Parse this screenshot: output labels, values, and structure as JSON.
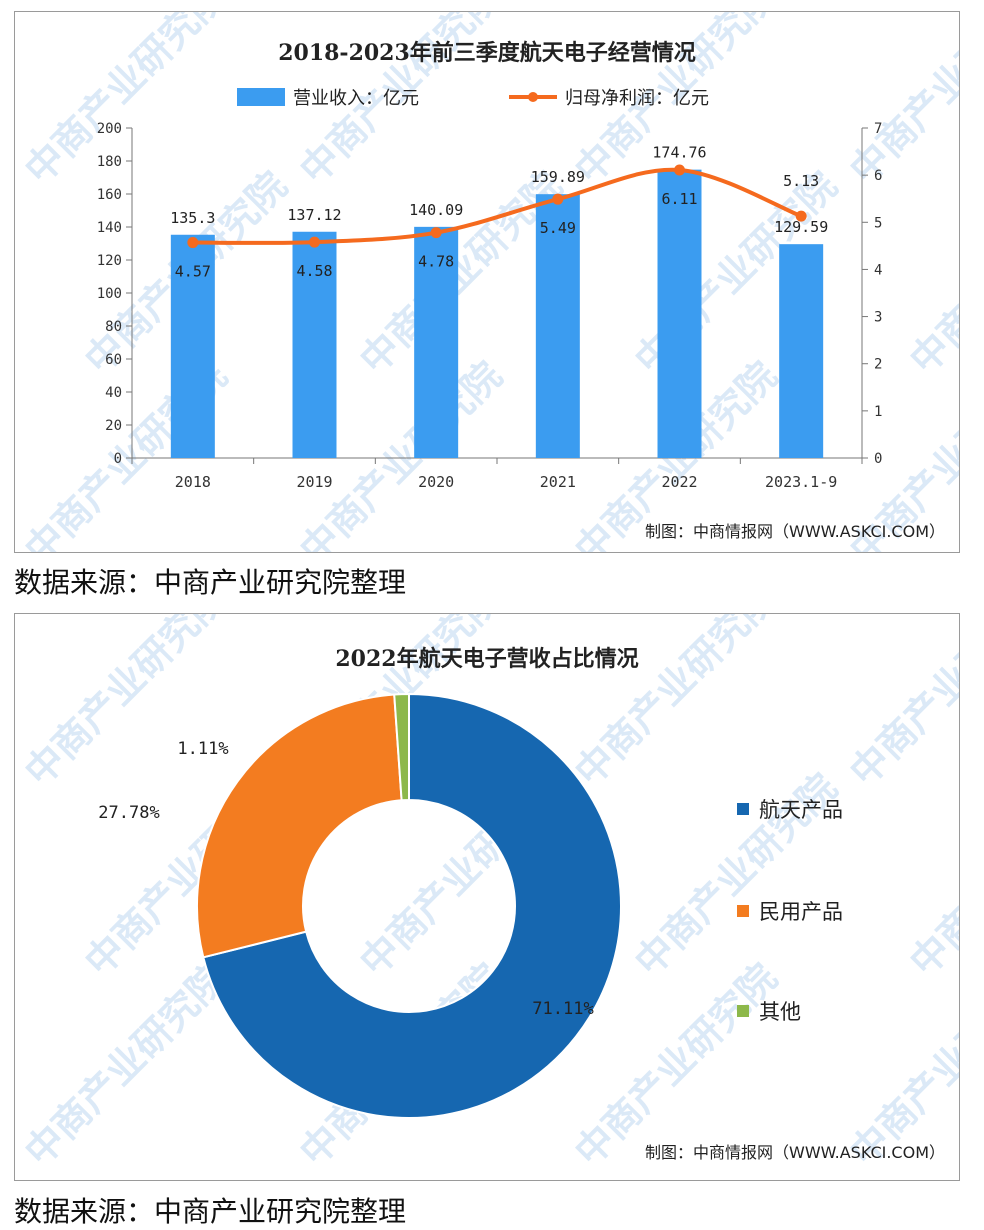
{
  "watermark": "中商产业研究院",
  "source_note": "数据来源：中商产业研究院整理",
  "credit": "制图：中商情报网（WWW.ASKCI.COM）",
  "colors": {
    "bar": "#3b9cf0",
    "line": "#f56a1e",
    "aerospace": "#1667b0",
    "civil": "#f37c20",
    "other": "#8db84a",
    "watermark": "#dbe9f7"
  },
  "chart_data": [
    {
      "type": "bar+line",
      "title": "2018-2023年前三季度航天电子经营情况",
      "categories": [
        "2018",
        "2019",
        "2020",
        "2021",
        "2022",
        "2023.1-9"
      ],
      "series": [
        {
          "name": "营业收入：亿元",
          "type": "bar",
          "axis": "left",
          "values": [
            135.3,
            137.12,
            140.09,
            159.89,
            174.76,
            129.59
          ],
          "labels": [
            "135.3",
            "137.12",
            "140.09",
            "159.89",
            "174.76",
            "129.59"
          ]
        },
        {
          "name": "归母净利润：亿元",
          "type": "line",
          "axis": "right",
          "values": [
            4.57,
            4.58,
            4.78,
            5.49,
            6.11,
            5.13
          ],
          "labels": [
            "4.57",
            "4.58",
            "4.78",
            "5.49",
            "6.11",
            "5.13"
          ]
        }
      ],
      "ylim_left": [
        0,
        200
      ],
      "yticks_left": [
        "0",
        "20",
        "40",
        "60",
        "80",
        "100",
        "120",
        "140",
        "160",
        "180",
        "200"
      ],
      "ylim_right": [
        0,
        7
      ],
      "yticks_right": [
        "0",
        "1",
        "2",
        "3",
        "4",
        "5",
        "6",
        "7"
      ],
      "legend_position": "top-center",
      "grid": false
    },
    {
      "type": "pie",
      "donut": true,
      "title": "2022年航天电子营收占比情况",
      "slices": [
        {
          "name": "航天产品",
          "value": 71.11,
          "label": "71.11%"
        },
        {
          "name": "民用产品",
          "value": 27.78,
          "label": "27.78%"
        },
        {
          "name": "其他",
          "value": 1.11,
          "label": "1.11%"
        }
      ],
      "legend_position": "right"
    }
  ]
}
